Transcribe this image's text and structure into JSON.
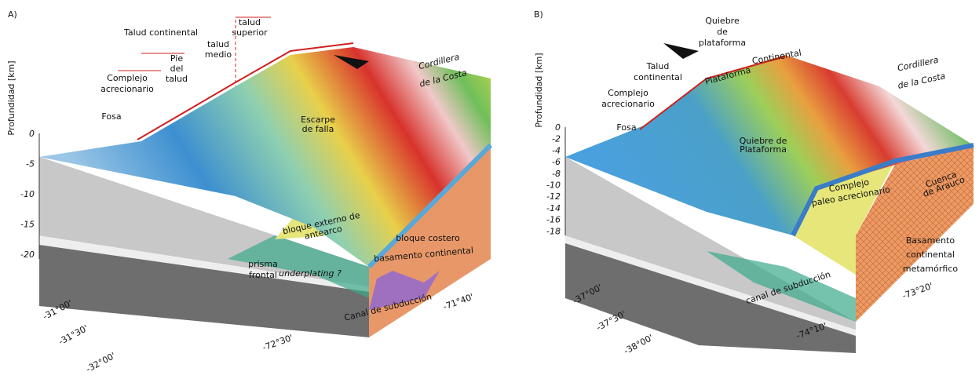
{
  "panels": [
    {
      "tag": "A)",
      "axis_title": "Profundidad [km]",
      "depth_ticks": [
        "0",
        "-5",
        "-10",
        "-15",
        "-20"
      ],
      "labels": [
        {
          "lines": [
            "Talud continental"
          ]
        },
        {
          "lines": [
            "talud",
            "superior"
          ]
        },
        {
          "lines": [
            "talud",
            "medio"
          ]
        },
        {
          "lines": [
            "Pie",
            "del",
            "talud"
          ]
        },
        {
          "lines": [
            "Complejo",
            "acrecionario"
          ]
        },
        {
          "lines": [
            "Fosa"
          ]
        },
        {
          "lines": [
            "Cordillera",
            "de la Costa"
          ]
        },
        {
          "lines": [
            "Escarpe",
            "de falla"
          ]
        },
        {
          "lines": [
            "bloque externo de",
            "antearco"
          ]
        },
        {
          "lines": [
            "bloque costero"
          ]
        },
        {
          "lines": [
            "basamento continental"
          ]
        },
        {
          "lines": [
            "prisma",
            "frontal"
          ]
        },
        {
          "lines": [
            "underplating ?"
          ]
        },
        {
          "lines": [
            "Canal de subducción"
          ]
        }
      ],
      "coordinates": [
        "-31°00'",
        "-31°30'",
        "-32°00'",
        "-72°30'",
        "-71°40'"
      ]
    },
    {
      "tag": "B)",
      "axis_title": "Profundidad [km]",
      "depth_ticks": [
        "0",
        "-2",
        "-4",
        "-6",
        "-8",
        "-10",
        "-12",
        "-14",
        "-16",
        "-18"
      ],
      "labels": [
        {
          "lines": [
            "Quiebre",
            "de",
            "plataforma"
          ]
        },
        {
          "lines": [
            "Plataforma"
          ]
        },
        {
          "lines": [
            "Continental"
          ]
        },
        {
          "lines": [
            "Talud",
            "continental"
          ]
        },
        {
          "lines": [
            "Complejo",
            "acrecionario"
          ]
        },
        {
          "lines": [
            "Fosa"
          ]
        },
        {
          "lines": [
            "Cordillera",
            "de la Costa"
          ]
        },
        {
          "lines": [
            "Quiebre de",
            "Plataforma"
          ]
        },
        {
          "lines": [
            "Cuenca",
            "de Arauco"
          ]
        },
        {
          "lines": [
            "Complejo",
            "paleo acrecionario"
          ]
        },
        {
          "lines": [
            "Basamento",
            "continental",
            "metamórfico"
          ]
        },
        {
          "lines": [
            "canal de subducción"
          ]
        }
      ],
      "coordinates": [
        "-37°00'",
        "-37°30'",
        "-38°00'",
        "-74°10'",
        "-73°20'"
      ]
    }
  ]
}
